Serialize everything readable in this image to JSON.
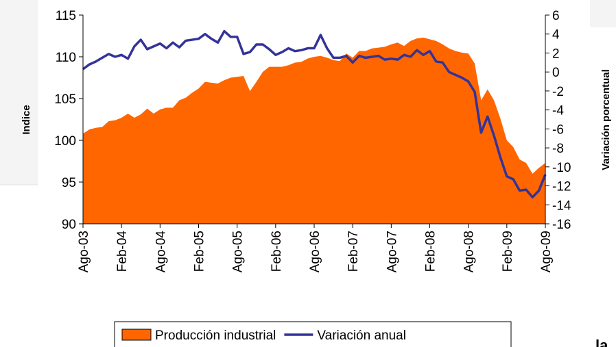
{
  "chart_data": {
    "type": "area-line",
    "y_label": "Indice",
    "y2_label": "Variación porcentual",
    "annotations": [
      "la"
    ],
    "categories": [
      "Ago-03",
      null,
      null,
      null,
      null,
      null,
      "Feb-04",
      null,
      null,
      null,
      null,
      null,
      "Ago-04",
      null,
      null,
      null,
      null,
      null,
      "Feb-05",
      null,
      null,
      null,
      null,
      null,
      "Ago-05",
      null,
      null,
      null,
      null,
      null,
      "Feb-06",
      null,
      null,
      null,
      null,
      null,
      "Ago-06",
      null,
      null,
      null,
      null,
      null,
      "Feb-07",
      null,
      null,
      null,
      null,
      null,
      "Ago-07",
      null,
      null,
      null,
      null,
      null,
      "Feb-08",
      null,
      null,
      null,
      null,
      null,
      "Ago-08",
      null,
      null,
      null,
      null,
      null,
      "Feb-09",
      null,
      null,
      null,
      null,
      null,
      "Ago-09"
    ],
    "series": [
      {
        "name": "Producción industrial",
        "color": "#ff6600",
        "kind": "area",
        "values": [
          100.8,
          101.3,
          101.5,
          101.6,
          102.3,
          102.4,
          102.7,
          103.2,
          102.7,
          103.1,
          103.8,
          103.2,
          103.7,
          103.9,
          103.9,
          104.8,
          105.1,
          105.7,
          106.2,
          107.0,
          106.9,
          106.8,
          107.2,
          107.5,
          107.6,
          107.7,
          105.9,
          107.0,
          108.2,
          108.8,
          108.8,
          108.8,
          109.0,
          109.3,
          109.4,
          109.8,
          110.0,
          110.1,
          109.9,
          109.6,
          109.5,
          110.4,
          109.9,
          110.7,
          110.7,
          111.0,
          111.1,
          111.2,
          111.5,
          111.7,
          111.3,
          111.9,
          112.2,
          112.3,
          112.1,
          111.9,
          111.5,
          111.0,
          110.7,
          110.5,
          110.4,
          109.2,
          104.8,
          106.1,
          104.8,
          102.6,
          100.0,
          99.2,
          97.7,
          97.3,
          96.0,
          96.7,
          97.3
        ]
      },
      {
        "name": "Variación anual",
        "color": "#333399",
        "kind": "line",
        "axis": "y2",
        "values": [
          0.3,
          0.8,
          1.1,
          1.5,
          1.9,
          1.6,
          1.8,
          1.4,
          2.7,
          3.4,
          2.4,
          2.7,
          3.0,
          2.5,
          3.1,
          2.6,
          3.3,
          3.4,
          3.5,
          4.0,
          3.5,
          3.1,
          4.3,
          3.7,
          3.7,
          1.9,
          2.1,
          2.9,
          2.9,
          2.4,
          1.8,
          2.1,
          2.5,
          2.2,
          2.3,
          2.5,
          2.5,
          3.9,
          2.5,
          1.5,
          1.5,
          1.7,
          1.0,
          1.7,
          1.5,
          1.6,
          1.7,
          1.3,
          1.4,
          1.3,
          1.8,
          1.6,
          2.3,
          1.8,
          2.2,
          1.1,
          1.0,
          0.0,
          -0.3,
          -0.6,
          -1.0,
          -2.1,
          -6.4,
          -4.7,
          -6.7,
          -9.0,
          -11.0,
          -11.3,
          -12.5,
          -12.4,
          -13.2,
          -12.5,
          -10.8
        ]
      }
    ],
    "ylim": [
      90,
      115
    ],
    "yticks": [
      90,
      95,
      100,
      105,
      110,
      115
    ],
    "y2lim": [
      -16,
      6
    ],
    "y2ticks": [
      -16,
      -14,
      -12,
      -10,
      -8,
      -6,
      -4,
      -2,
      0,
      2,
      4,
      6
    ],
    "legend": "bottom"
  }
}
